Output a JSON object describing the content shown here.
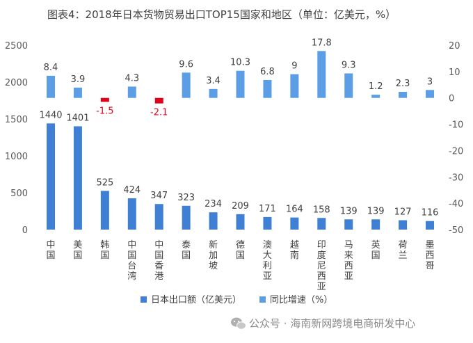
{
  "chart_data": {
    "type": "bar",
    "title": "图表4：2018年日本货物贸易出口TOP15国家和地区（单位：亿美元，%）",
    "categories": [
      "中国",
      "美国",
      "韩国",
      "中国台湾",
      "中国香港",
      "泰国",
      "新加坡",
      "德国",
      "澳大利亚",
      "越南",
      "印度尼西亚",
      "马来西亚",
      "英国",
      "荷兰",
      "墨西哥"
    ],
    "series": [
      {
        "name": "日本出口额（亿美元）",
        "axis": "left",
        "color": "#3f7fd4",
        "values": [
          1440,
          1401,
          525,
          424,
          347,
          323,
          234,
          209,
          171,
          164,
          158,
          139,
          139,
          127,
          116
        ],
        "labels": [
          "1440",
          "1401",
          "525",
          "424",
          "347",
          "323",
          "234",
          "209",
          "171",
          "164",
          "158",
          "139",
          "139",
          "127",
          "116"
        ]
      },
      {
        "name": "同比增速（%）",
        "axis": "right",
        "color": "#5b9ee6",
        "negative_color": "#e0001b",
        "values": [
          8.4,
          3.9,
          -1.5,
          4.3,
          -2.1,
          9.6,
          3.4,
          10.3,
          6.8,
          9,
          17.8,
          9.3,
          1.2,
          2.3,
          3
        ],
        "labels": [
          "8.4",
          "3.9",
          "-1.5",
          "4.3",
          "-2.1",
          "9.6",
          "3.4",
          "10.3",
          "6.8",
          "9",
          "17.8",
          "9.3",
          "1.2",
          "2.3",
          "3"
        ]
      }
    ],
    "yleft": {
      "lim": [
        0,
        2500
      ],
      "ticks": [
        "0",
        "500",
        "1000",
        "1500",
        "2000",
        "2500"
      ]
    },
    "yright": {
      "lim": [
        -50,
        20
      ],
      "ticks": [
        "-50",
        "-40",
        "-30",
        "-20",
        "-10",
        "0",
        "10",
        "20"
      ]
    },
    "grid": false,
    "legend_position": "bottom"
  },
  "legend": {
    "export_label": "日本出口额（亿美元）",
    "growth_label": "同比增速（%）"
  },
  "watermark": {
    "icon": "wechat-icon",
    "text": "公众号 · 海南新网跨境电商研发中心"
  }
}
